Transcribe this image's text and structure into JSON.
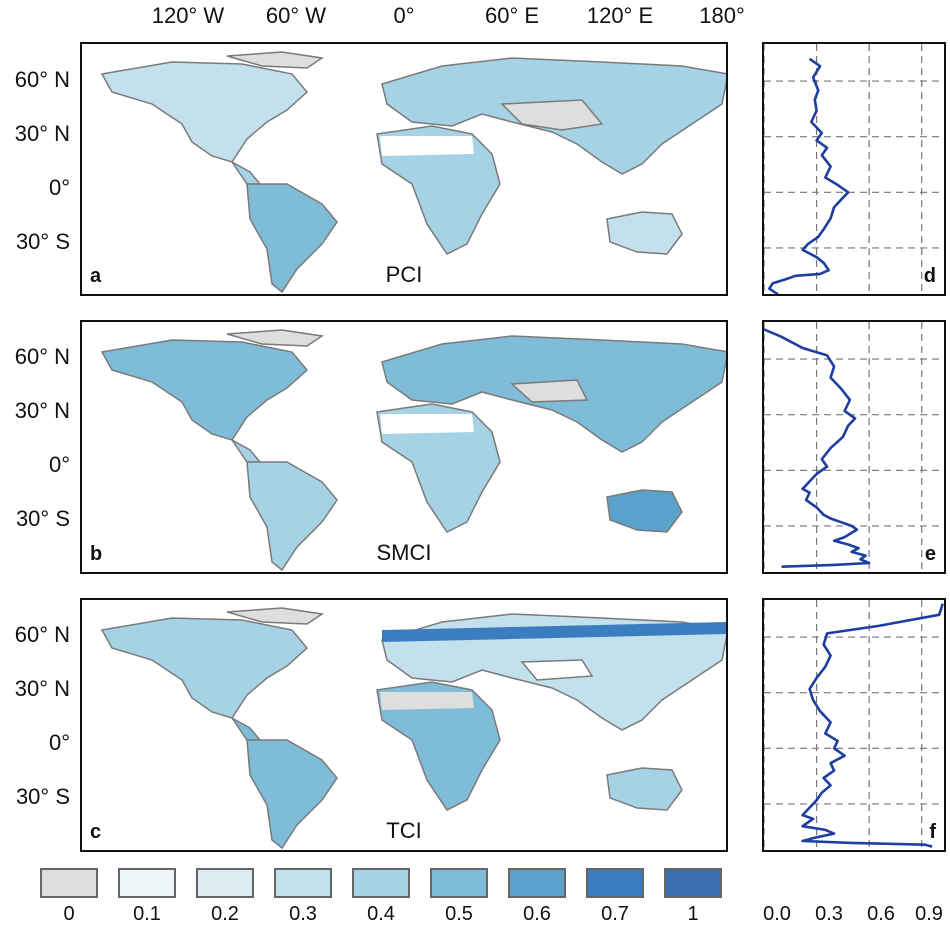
{
  "longitude_labels": [
    "120° W",
    "60° W",
    "0°",
    "60° E",
    "120° E",
    "180°"
  ],
  "latitude_labels": [
    "60° N",
    "30° N",
    "0°",
    "30° S"
  ],
  "panels": [
    {
      "tag": "a",
      "index": "PCI",
      "profile_tag": "d"
    },
    {
      "tag": "b",
      "index": "SMCI",
      "profile_tag": "e"
    },
    {
      "tag": "c",
      "index": "TCI",
      "profile_tag": "f"
    }
  ],
  "legend": {
    "labels": [
      "0",
      "0.1",
      "0.2",
      "0.3",
      "0.4",
      "0.5",
      "0.6",
      "0.7",
      "1"
    ],
    "colors": [
      "#dedede",
      "#eef6f9",
      "#dcedf3",
      "#c3e0ed",
      "#a6d2e5",
      "#7fbcd8",
      "#5aa2cb",
      "#3b7ec0",
      "#3a6fb0"
    ]
  },
  "profile_axis": {
    "tick_labels": [
      "0.0",
      "0.3",
      "0.6",
      "0.9"
    ]
  },
  "chart_data": [
    {
      "type": "line",
      "panel": "d",
      "xlim": [
        0,
        1.05
      ],
      "ylim": [
        -57,
        80
      ],
      "x": [
        0.26,
        0.32,
        0.28,
        0.31,
        0.29,
        0.3,
        0.27,
        0.33,
        0.3,
        0.36,
        0.33,
        0.38,
        0.35,
        0.42,
        0.48,
        0.44,
        0.4,
        0.38,
        0.34,
        0.31,
        0.25,
        0.22,
        0.26,
        0.3,
        0.34,
        0.37,
        0.32,
        0.18,
        0.12,
        0.05,
        0.03,
        0.08
      ],
      "y": [
        72,
        68,
        62,
        55,
        50,
        44,
        38,
        32,
        28,
        24,
        20,
        14,
        8,
        4,
        0,
        -4,
        -8,
        -14,
        -20,
        -24,
        -28,
        -31,
        -33,
        -35,
        -38,
        -42,
        -44,
        -45,
        -47,
        -49,
        -52,
        -55
      ]
    },
    {
      "type": "line",
      "panel": "e",
      "xlim": [
        0,
        1.05
      ],
      "ylim": [
        -57,
        80
      ],
      "x": [
        0.0,
        0.1,
        0.22,
        0.36,
        0.4,
        0.38,
        0.44,
        0.49,
        0.46,
        0.52,
        0.48,
        0.45,
        0.38,
        0.33,
        0.36,
        0.3,
        0.26,
        0.24,
        0.22,
        0.26,
        0.24,
        0.3,
        0.34,
        0.38,
        0.44,
        0.5,
        0.53,
        0.46,
        0.4,
        0.48,
        0.54,
        0.5,
        0.58,
        0.55,
        0.6,
        0.4,
        0.1
      ],
      "y": [
        76,
        72,
        66,
        62,
        56,
        50,
        44,
        38,
        32,
        28,
        24,
        18,
        12,
        6,
        2,
        -2,
        -6,
        -8,
        -10,
        -12,
        -16,
        -20,
        -24,
        -26,
        -28,
        -30,
        -32,
        -36,
        -38,
        -40,
        -42,
        -44,
        -46,
        -48,
        -50,
        -51,
        -52
      ]
    },
    {
      "type": "line",
      "panel": "f",
      "xlim": [
        0,
        1.05
      ],
      "ylim": [
        -57,
        80
      ],
      "x": [
        1.02,
        1.0,
        0.65,
        0.36,
        0.34,
        0.38,
        0.35,
        0.3,
        0.26,
        0.28,
        0.32,
        0.38,
        0.35,
        0.42,
        0.4,
        0.46,
        0.38,
        0.4,
        0.34,
        0.38,
        0.33,
        0.3,
        0.26,
        0.22,
        0.28,
        0.25,
        0.22,
        0.35,
        0.4,
        0.3,
        0.22,
        0.5,
        0.92,
        0.96
      ],
      "y": [
        78,
        72,
        66,
        62,
        56,
        50,
        44,
        38,
        32,
        26,
        20,
        14,
        8,
        4,
        0,
        -4,
        -8,
        -12,
        -16,
        -20,
        -24,
        -28,
        -32,
        -36,
        -38,
        -40,
        -42,
        -44,
        -46,
        -48,
        -50,
        -51,
        -52,
        -53
      ]
    }
  ]
}
